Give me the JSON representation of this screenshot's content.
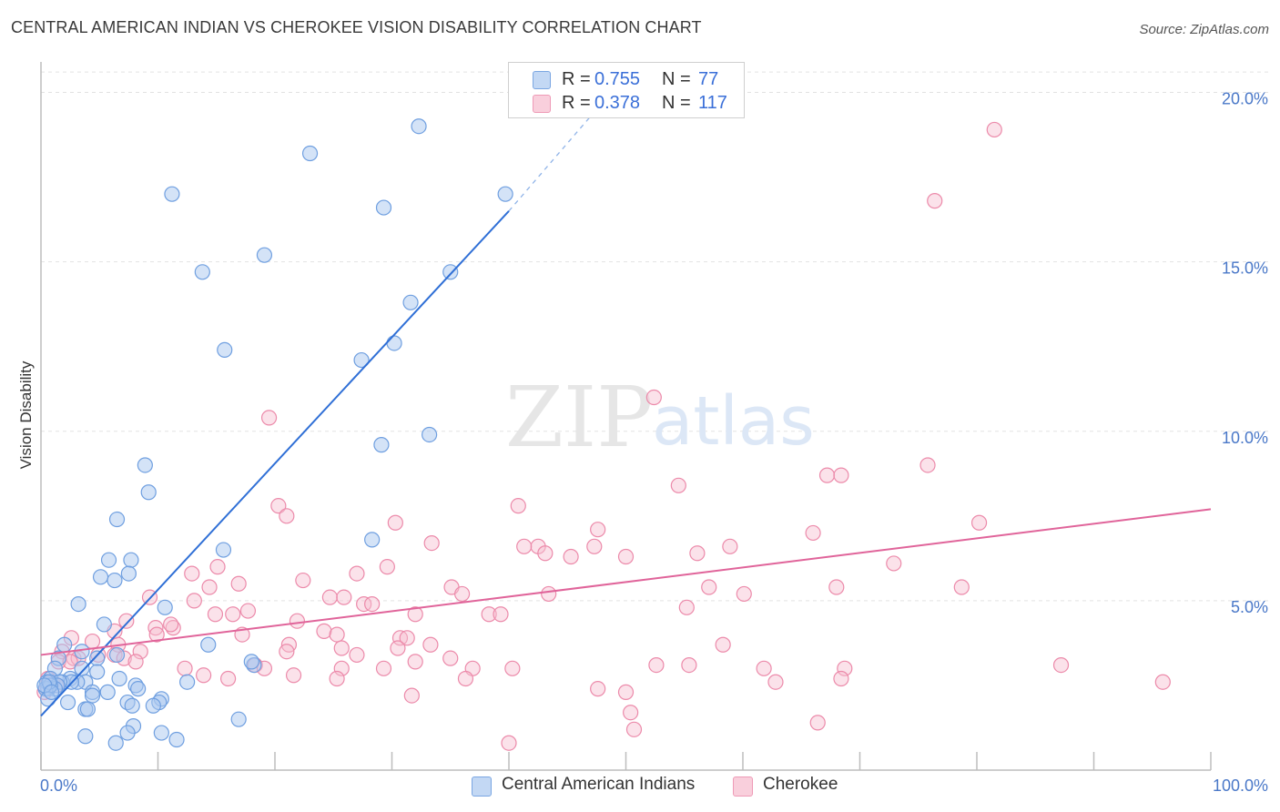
{
  "header": {
    "title": "CENTRAL AMERICAN INDIAN VS CHEROKEE VISION DISABILITY CORRELATION CHART",
    "source": "Source: ZipAtlas.com"
  },
  "watermark": {
    "zip": "ZIP",
    "atlas": "atlas"
  },
  "legend_top": {
    "rows": [
      {
        "r_label": "R =",
        "r_value": "0.755",
        "n_label": "N =",
        "n_value": "77"
      },
      {
        "r_label": "R =",
        "r_value": "0.378",
        "n_label": "N =",
        "n_value": "117"
      }
    ]
  },
  "legend_bottom": {
    "items": [
      {
        "label": "Central American Indians"
      },
      {
        "label": "Cherokee"
      }
    ]
  },
  "colors": {
    "blue_fill": "#a9c8f0",
    "blue_stroke": "#6f9fe0",
    "blue_line": "#2f6fd6",
    "pink_fill": "#f7bfd0",
    "pink_stroke": "#ec8aaa",
    "pink_line": "#e0649a",
    "tick_text": "#4a78c8",
    "grid": "#e2e2e2"
  },
  "chart_data": {
    "type": "scatter",
    "title": "CENTRAL AMERICAN INDIAN VS CHEROKEE VISION DISABILITY CORRELATION CHART",
    "xlabel": "",
    "ylabel": "Vision Disability",
    "xlim": [
      0,
      100
    ],
    "ylim": [
      0,
      20.9
    ],
    "x_tick_labels": [
      {
        "value": 0,
        "label": "0.0%"
      },
      {
        "value": 100,
        "label": "100.0%"
      }
    ],
    "y_tick_labels": [
      {
        "value": 5,
        "label": "5.0%"
      },
      {
        "value": 10,
        "label": "10.0%"
      },
      {
        "value": 15,
        "label": "15.0%"
      },
      {
        "value": 20,
        "label": "20.0%"
      }
    ],
    "x_minor_ticks": [
      0,
      10,
      20,
      30,
      40,
      50,
      60,
      70,
      80,
      90,
      100
    ],
    "grid": true,
    "series": [
      {
        "name": "Central American Indians",
        "color": "#a9c8f0",
        "stats": {
          "R": 0.755,
          "N": 77
        },
        "trendline": {
          "x": [
            0,
            40
          ],
          "y": [
            1.6,
            16.5
          ],
          "dashed_to": [
            47,
            19.3
          ]
        },
        "points": [
          [
            32.3,
            19.0
          ],
          [
            23.0,
            18.2
          ],
          [
            39.7,
            17.0
          ],
          [
            11.2,
            17.0
          ],
          [
            29.3,
            16.6
          ],
          [
            19.1,
            15.2
          ],
          [
            13.8,
            14.7
          ],
          [
            35.0,
            14.7
          ],
          [
            31.6,
            13.8
          ],
          [
            30.2,
            12.6
          ],
          [
            15.7,
            12.4
          ],
          [
            27.4,
            12.1
          ],
          [
            33.2,
            9.9
          ],
          [
            29.1,
            9.6
          ],
          [
            8.9,
            9.0
          ],
          [
            9.2,
            8.2
          ],
          [
            6.5,
            7.4
          ],
          [
            28.3,
            6.8
          ],
          [
            15.6,
            6.5
          ],
          [
            5.8,
            6.2
          ],
          [
            7.7,
            6.2
          ],
          [
            5.1,
            5.7
          ],
          [
            6.3,
            5.6
          ],
          [
            7.5,
            5.8
          ],
          [
            3.2,
            4.9
          ],
          [
            10.6,
            4.8
          ],
          [
            5.4,
            4.3
          ],
          [
            14.3,
            3.7
          ],
          [
            2.0,
            3.7
          ],
          [
            3.5,
            3.5
          ],
          [
            6.5,
            3.4
          ],
          [
            4.8,
            3.3
          ],
          [
            1.5,
            3.3
          ],
          [
            3.5,
            3.0
          ],
          [
            1.2,
            3.0
          ],
          [
            18.2,
            3.1
          ],
          [
            18.0,
            3.2
          ],
          [
            4.8,
            2.9
          ],
          [
            2.5,
            2.7
          ],
          [
            1.8,
            2.6
          ],
          [
            3.8,
            2.6
          ],
          [
            3.1,
            2.6
          ],
          [
            2.6,
            2.6
          ],
          [
            0.8,
            2.7
          ],
          [
            1.6,
            2.6
          ],
          [
            0.5,
            2.6
          ],
          [
            1.4,
            2.5
          ],
          [
            1.2,
            2.4
          ],
          [
            0.6,
            2.4
          ],
          [
            0.4,
            2.4
          ],
          [
            0.8,
            2.5
          ],
          [
            0.7,
            2.6
          ],
          [
            6.7,
            2.7
          ],
          [
            12.5,
            2.6
          ],
          [
            8.1,
            2.5
          ],
          [
            8.3,
            2.4
          ],
          [
            5.7,
            2.3
          ],
          [
            4.4,
            2.3
          ],
          [
            4.4,
            2.2
          ],
          [
            0.6,
            2.1
          ],
          [
            2.3,
            2.0
          ],
          [
            7.4,
            2.0
          ],
          [
            10.3,
            2.1
          ],
          [
            10.1,
            2.0
          ],
          [
            7.8,
            1.9
          ],
          [
            9.6,
            1.9
          ],
          [
            3.8,
            1.8
          ],
          [
            4.0,
            1.8
          ],
          [
            16.9,
            1.5
          ],
          [
            7.9,
            1.3
          ],
          [
            10.3,
            1.1
          ],
          [
            7.4,
            1.1
          ],
          [
            11.6,
            0.9
          ],
          [
            3.8,
            1.0
          ],
          [
            6.4,
            0.8
          ],
          [
            0.3,
            2.5
          ],
          [
            0.9,
            2.3
          ]
        ]
      },
      {
        "name": "Cherokee",
        "color": "#f7bfd0",
        "stats": {
          "R": 0.378,
          "N": 117
        },
        "trendline": {
          "x": [
            0,
            100
          ],
          "y": [
            3.4,
            7.7
          ]
        },
        "points": [
          [
            81.5,
            18.9
          ],
          [
            76.4,
            16.8
          ],
          [
            52.4,
            11.0
          ],
          [
            19.5,
            10.4
          ],
          [
            75.8,
            9.0
          ],
          [
            67.2,
            8.7
          ],
          [
            68.4,
            8.7
          ],
          [
            54.5,
            8.4
          ],
          [
            20.3,
            7.8
          ],
          [
            40.8,
            7.8
          ],
          [
            21.0,
            7.5
          ],
          [
            30.3,
            7.3
          ],
          [
            80.2,
            7.3
          ],
          [
            47.6,
            7.1
          ],
          [
            66.0,
            7.0
          ],
          [
            33.4,
            6.7
          ],
          [
            42.5,
            6.6
          ],
          [
            41.3,
            6.6
          ],
          [
            47.3,
            6.6
          ],
          [
            56.1,
            6.4
          ],
          [
            50.0,
            6.3
          ],
          [
            58.9,
            6.6
          ],
          [
            43.1,
            6.4
          ],
          [
            45.3,
            6.3
          ],
          [
            72.9,
            6.1
          ],
          [
            29.6,
            6.0
          ],
          [
            15.1,
            6.0
          ],
          [
            12.9,
            5.8
          ],
          [
            27.0,
            5.8
          ],
          [
            22.4,
            5.6
          ],
          [
            16.9,
            5.5
          ],
          [
            14.4,
            5.4
          ],
          [
            35.1,
            5.4
          ],
          [
            57.1,
            5.4
          ],
          [
            78.7,
            5.4
          ],
          [
            68.0,
            5.4
          ],
          [
            36.0,
            5.2
          ],
          [
            60.1,
            5.2
          ],
          [
            43.4,
            5.2
          ],
          [
            24.7,
            5.1
          ],
          [
            25.9,
            5.1
          ],
          [
            9.3,
            5.1
          ],
          [
            13.1,
            5.0
          ],
          [
            27.6,
            4.9
          ],
          [
            28.3,
            4.9
          ],
          [
            55.2,
            4.8
          ],
          [
            17.7,
            4.7
          ],
          [
            32.0,
            4.6
          ],
          [
            38.3,
            4.6
          ],
          [
            39.3,
            4.6
          ],
          [
            14.9,
            4.6
          ],
          [
            16.4,
            4.6
          ],
          [
            7.3,
            4.4
          ],
          [
            21.9,
            4.4
          ],
          [
            24.2,
            4.1
          ],
          [
            25.3,
            4.0
          ],
          [
            9.8,
            4.2
          ],
          [
            11.3,
            4.2
          ],
          [
            11.1,
            4.3
          ],
          [
            6.3,
            4.1
          ],
          [
            9.9,
            4.0
          ],
          [
            17.2,
            4.0
          ],
          [
            30.7,
            3.9
          ],
          [
            31.3,
            3.9
          ],
          [
            2.6,
            3.9
          ],
          [
            4.4,
            3.8
          ],
          [
            6.6,
            3.7
          ],
          [
            21.2,
            3.7
          ],
          [
            30.5,
            3.6
          ],
          [
            33.3,
            3.7
          ],
          [
            58.3,
            3.7
          ],
          [
            35.0,
            3.3
          ],
          [
            21.0,
            3.5
          ],
          [
            25.7,
            3.6
          ],
          [
            1.8,
            3.5
          ],
          [
            6.3,
            3.4
          ],
          [
            2.8,
            3.3
          ],
          [
            4.9,
            3.4
          ],
          [
            7.1,
            3.3
          ],
          [
            8.5,
            3.5
          ],
          [
            3.2,
            3.3
          ],
          [
            1.5,
            3.2
          ],
          [
            27.0,
            3.4
          ],
          [
            25.7,
            3.0
          ],
          [
            29.3,
            3.0
          ],
          [
            18.3,
            3.1
          ],
          [
            19.1,
            3.0
          ],
          [
            12.3,
            3.0
          ],
          [
            8.1,
            3.2
          ],
          [
            2.5,
            3.2
          ],
          [
            32.0,
            3.2
          ],
          [
            36.9,
            3.0
          ],
          [
            40.3,
            3.0
          ],
          [
            55.4,
            3.1
          ],
          [
            61.8,
            3.0
          ],
          [
            68.7,
            3.0
          ],
          [
            87.2,
            3.1
          ],
          [
            52.6,
            3.1
          ],
          [
            13.9,
            2.8
          ],
          [
            16.0,
            2.7
          ],
          [
            21.6,
            2.8
          ],
          [
            25.3,
            2.7
          ],
          [
            36.3,
            2.7
          ],
          [
            68.4,
            2.7
          ],
          [
            95.9,
            2.6
          ],
          [
            62.8,
            2.6
          ],
          [
            0.6,
            2.7
          ],
          [
            1.3,
            2.5
          ],
          [
            31.7,
            2.2
          ],
          [
            47.6,
            2.4
          ],
          [
            50.0,
            2.3
          ],
          [
            50.4,
            1.7
          ],
          [
            66.4,
            1.4
          ],
          [
            50.7,
            1.2
          ],
          [
            40.0,
            0.8
          ],
          [
            0.3,
            2.3
          ],
          [
            1.0,
            2.6
          ]
        ]
      }
    ]
  }
}
